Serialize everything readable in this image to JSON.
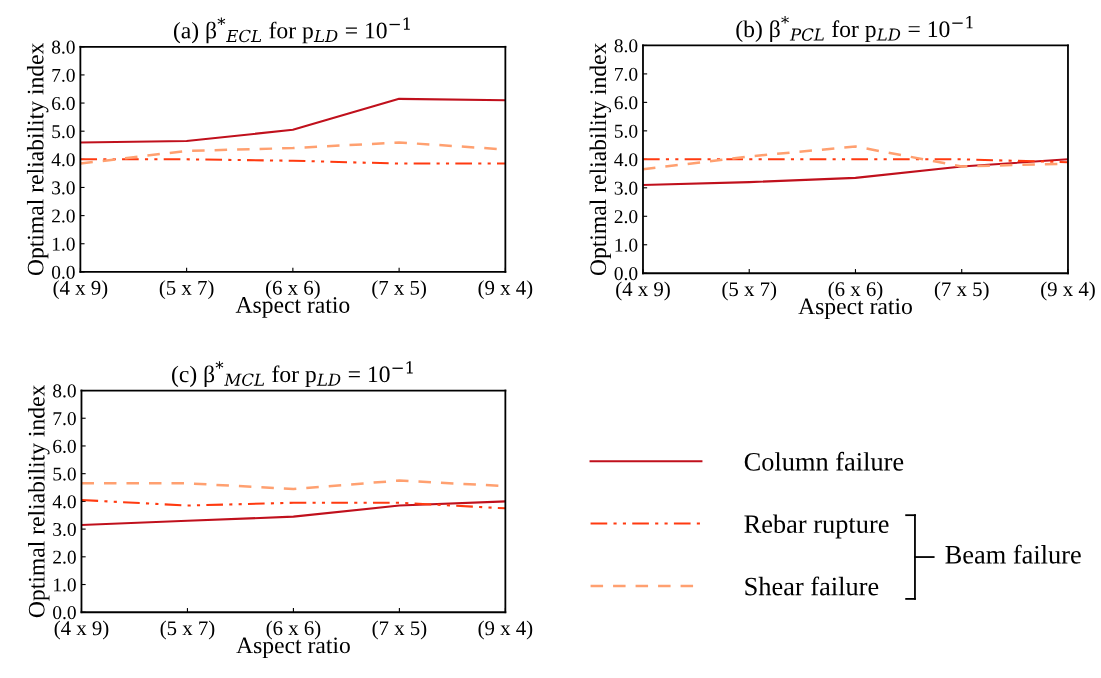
{
  "chart_data": [
    {
      "type": "line",
      "title": "(a) β$^{*}$$_{ECL}$ for p$_{LD}$ = 10$^{−1}$",
      "xlabel": "Aspect ratio",
      "ylabel": "Optimal reliability index",
      "categories": [
        "(4 x 9)",
        "(5 x 7)",
        "(6 x 6)",
        "(7 x 5)",
        "(9 x 4)"
      ],
      "ylim": [
        0,
        8
      ],
      "yticks": [
        {
          "value": 0,
          "label": "0.0"
        },
        {
          "value": 1,
          "label": "1.0"
        },
        {
          "value": 2,
          "label": "2.0"
        },
        {
          "value": 3,
          "label": "3.0"
        },
        {
          "value": 4,
          "label": "4.0"
        },
        {
          "value": 5,
          "label": "5.0"
        },
        {
          "value": 6,
          "label": "6.0"
        },
        {
          "value": 7,
          "label": "7.0"
        },
        {
          "value": 8,
          "label": "8.0"
        }
      ],
      "grid": false,
      "series": [
        {
          "color": "#c0101c",
          "line_style": "solid",
          "values": [
            4.6,
            4.65,
            5.05,
            6.15,
            6.1
          ]
        },
        {
          "color": "#ff3a10",
          "line_style": "dashdotdot",
          "values": [
            4.0,
            4.0,
            3.95,
            3.85,
            3.85
          ]
        },
        {
          "color": "#ffa070",
          "line_style": "dashed",
          "values": [
            3.85,
            4.3,
            4.4,
            4.6,
            4.35
          ]
        }
      ]
    },
    {
      "type": "line",
      "title": "(b) β$^{*}$$_{PCL}$ for p$_{LD}$ = 10$^{−1}$",
      "xlabel": "Aspect ratio",
      "ylabel": "Optimal reliability index",
      "categories": [
        "(4 x 9)",
        "(5 x 7)",
        "(6 x 6)",
        "(7 x 5)",
        "(9 x 4)"
      ],
      "ylim": [
        0,
        8
      ],
      "yticks": [
        {
          "value": 0,
          "label": "0.0"
        },
        {
          "value": 1,
          "label": "1.0"
        },
        {
          "value": 2,
          "label": "2.0"
        },
        {
          "value": 3,
          "label": "3.0"
        },
        {
          "value": 4,
          "label": "4.0"
        },
        {
          "value": 5,
          "label": "5.0"
        },
        {
          "value": 6,
          "label": "6.0"
        },
        {
          "value": 7,
          "label": "7.0"
        },
        {
          "value": 8,
          "label": "8.0"
        }
      ],
      "grid": false,
      "series": [
        {
          "color": "#c0101c",
          "line_style": "solid",
          "values": [
            3.1,
            3.2,
            3.35,
            3.75,
            4.0
          ]
        },
        {
          "color": "#ff3a10",
          "line_style": "dashdotdot",
          "values": [
            4.0,
            4.0,
            4.0,
            4.0,
            3.9
          ]
        },
        {
          "color": "#ffa070",
          "line_style": "dashed",
          "values": [
            3.65,
            4.1,
            4.45,
            3.75,
            3.85
          ]
        }
      ]
    },
    {
      "type": "line",
      "title": "(c) β$^{*}$$_{MCL}$ for p$_{LD}$ = 10$^{−1}$",
      "xlabel": "Aspect ratio",
      "ylabel": "Optimal reliability index",
      "categories": [
        "(4 x 9)",
        "(5 x 7)",
        "(6 x 6)",
        "(7 x 5)",
        "(9 x 4)"
      ],
      "ylim": [
        0,
        8
      ],
      "yticks": [
        {
          "value": 0,
          "label": "0.0"
        },
        {
          "value": 1,
          "label": "1.0"
        },
        {
          "value": 2,
          "label": "2.0"
        },
        {
          "value": 3,
          "label": "3.0"
        },
        {
          "value": 4,
          "label": "4.0"
        },
        {
          "value": 5,
          "label": "5.0"
        },
        {
          "value": 6,
          "label": "6.0"
        },
        {
          "value": 7,
          "label": "7.0"
        },
        {
          "value": 8,
          "label": "8.0"
        }
      ],
      "grid": false,
      "legend": "right",
      "annotations": [
        "Beam failure"
      ],
      "series": [
        {
          "name": "Column failure",
          "color": "#c0101c",
          "line_style": "solid",
          "values": [
            3.15,
            3.3,
            3.45,
            3.85,
            4.0
          ]
        },
        {
          "name": "Rebar rupture",
          "color": "#ff3a10",
          "line_style": "dashdotdot",
          "values": [
            4.05,
            3.85,
            3.95,
            3.95,
            3.75
          ]
        },
        {
          "name": "Shear failure",
          "color": "#ffa070",
          "line_style": "dashed",
          "values": [
            4.65,
            4.65,
            4.45,
            4.75,
            4.55
          ]
        }
      ]
    }
  ]
}
